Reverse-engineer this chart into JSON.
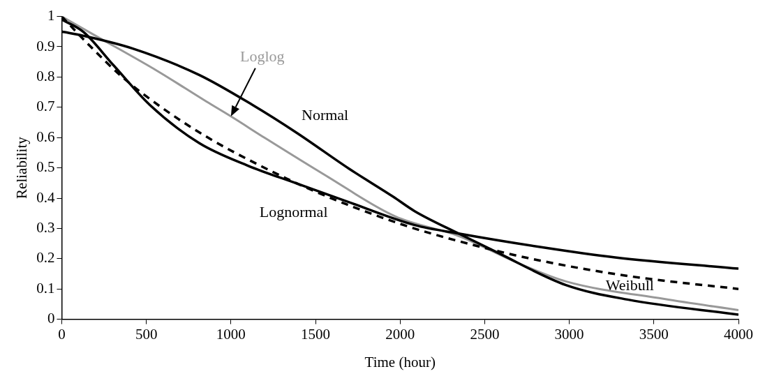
{
  "chart_data": {
    "type": "line",
    "xlabel": "Time (hour)",
    "ylabel": "Reliability",
    "xlim": [
      0,
      4000
    ],
    "xticks": [
      0,
      500,
      1000,
      1500,
      2000,
      2500,
      3000,
      3500,
      4000
    ],
    "ylim": [
      0,
      1
    ],
    "yticks": [
      0,
      0.1,
      0.2,
      0.3,
      0.4,
      0.5,
      0.6,
      0.7,
      0.8,
      0.9,
      1
    ],
    "grid": false,
    "legend": false,
    "marker": "none",
    "series": [
      {
        "name": "Normal",
        "color": "#000000",
        "line_style": "solid",
        "x": [
          0,
          130,
          420,
          812,
          1130,
          1391,
          1696,
          1961,
          2086,
          2346,
          2572,
          2980,
          3344,
          4000
        ],
        "values": [
          0.95,
          0.936,
          0.894,
          0.807,
          0.707,
          0.615,
          0.498,
          0.404,
          0.357,
          0.283,
          0.221,
          0.113,
          0.065,
          0.015
        ]
      },
      {
        "name": "Lognormal",
        "color": "#000000",
        "line_style": "solid",
        "x": [
          0,
          130,
          304,
          522,
          812,
          1101,
          1391,
          1681,
          2086,
          2346,
          2834,
          3271,
          4000
        ],
        "values": [
          0.99,
          0.948,
          0.84,
          0.707,
          0.582,
          0.507,
          0.448,
          0.39,
          0.311,
          0.283,
          0.238,
          0.204,
          0.167
        ]
      },
      {
        "name": "Weibull",
        "color": "#000000",
        "line_style": "dashed",
        "x": [
          0,
          159,
          362,
          594,
          870,
          1174,
          1493,
          2000,
          2346,
          2790,
          3358,
          4000
        ],
        "values": [
          1,
          0.907,
          0.798,
          0.698,
          0.598,
          0.507,
          0.423,
          0.315,
          0.258,
          0.198,
          0.142,
          0.1
        ]
      },
      {
        "name": "Loglog",
        "color": "#999999",
        "line_style": "solid",
        "x": [
          0,
          188,
          565,
          855,
          1000,
          1203,
          1565,
          1971,
          2346,
          2688,
          2980,
          3562,
          4000
        ],
        "values": [
          1,
          0.94,
          0.82,
          0.719,
          0.67,
          0.598,
          0.473,
          0.34,
          0.275,
          0.188,
          0.125,
          0.067,
          0.03
        ]
      }
    ]
  }
}
